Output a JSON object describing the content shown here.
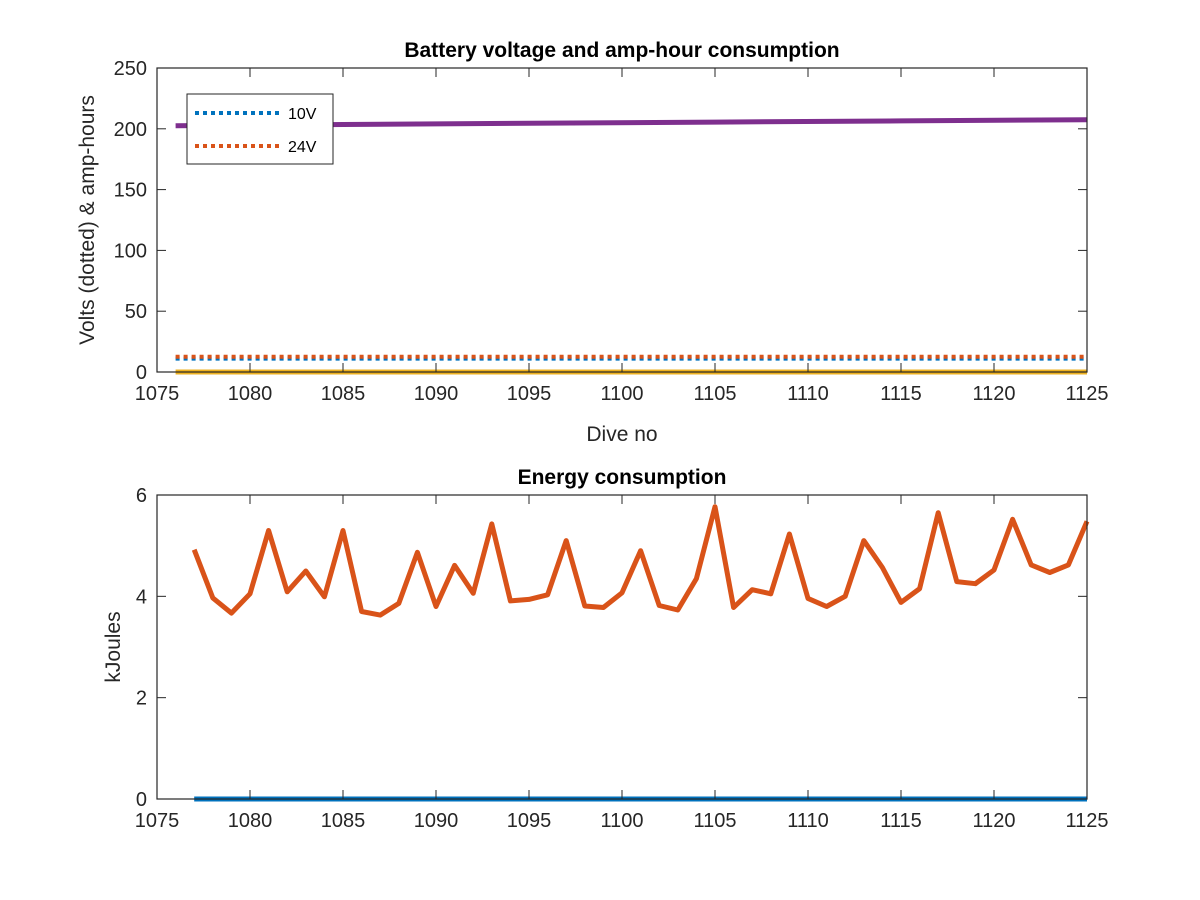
{
  "chart_data": [
    {
      "type": "line",
      "title": "Battery voltage and amp-hour consumption",
      "xlabel": "Dive no",
      "ylabel": "Volts (dotted) & amp-hours",
      "xlim": [
        1075,
        1125
      ],
      "ylim": [
        0,
        250
      ],
      "xticks": [
        "1075",
        "1080",
        "1085",
        "1090",
        "1095",
        "1100",
        "1105",
        "1110",
        "1115",
        "1120",
        "1125"
      ],
      "yticks": [
        "0",
        "50",
        "100",
        "150",
        "200",
        "250"
      ],
      "grid": false,
      "legend": {
        "position": "top-left",
        "entries": [
          "10V",
          "24V"
        ]
      },
      "series": [
        {
          "name": "10V",
          "style": "dotted",
          "color": "#0072BD",
          "x": [
            1076,
            1125
          ],
          "y": [
            11,
            11
          ]
        },
        {
          "name": "24V",
          "style": "dotted",
          "color": "#D95319",
          "x": [
            1076,
            1125
          ],
          "y": [
            12.5,
            12.5
          ]
        },
        {
          "style": "solid",
          "color": "#EDB120",
          "x": [
            1076,
            1125
          ],
          "y": [
            0,
            0
          ]
        },
        {
          "style": "solid",
          "color": "#7E2F8E",
          "x": [
            1076,
            1085,
            1095,
            1105,
            1115,
            1125
          ],
          "y": [
            202.5,
            203.5,
            204.5,
            205.5,
            206.5,
            207.5
          ]
        }
      ]
    },
    {
      "type": "line",
      "title": "Energy consumption",
      "xlabel": "",
      "ylabel": "kJoules",
      "xlim": [
        1075,
        1125
      ],
      "ylim": [
        0,
        6
      ],
      "xticks": [
        "1075",
        "1080",
        "1085",
        "1090",
        "1095",
        "1100",
        "1105",
        "1110",
        "1115",
        "1120",
        "1125"
      ],
      "yticks": [
        "0",
        "2",
        "4",
        "6"
      ],
      "grid": false,
      "series": [
        {
          "style": "solid",
          "color": "#D95319",
          "x": [
            1077,
            1078,
            1079,
            1080,
            1081,
            1082,
            1083,
            1084,
            1085,
            1086,
            1087,
            1088,
            1089,
            1090,
            1091,
            1092,
            1093,
            1094,
            1095,
            1096,
            1097,
            1098,
            1099,
            1100,
            1101,
            1102,
            1103,
            1104,
            1105,
            1106,
            1107,
            1108,
            1109,
            1110,
            1111,
            1112,
            1113,
            1114,
            1115,
            1116,
            1117,
            1118,
            1119,
            1120,
            1121,
            1122,
            1123,
            1124,
            1125
          ],
          "y": [
            4.92,
            3.97,
            3.67,
            4.05,
            5.3,
            4.09,
            4.5,
            3.99,
            5.3,
            3.7,
            3.63,
            3.86,
            4.87,
            3.8,
            4.61,
            4.06,
            5.43,
            3.91,
            3.94,
            4.03,
            5.1,
            3.81,
            3.78,
            4.07,
            4.9,
            3.82,
            3.73,
            4.35,
            5.77,
            3.78,
            4.13,
            4.05,
            5.23,
            3.96,
            3.8,
            4.0,
            5.1,
            4.57,
            3.88,
            4.15,
            5.65,
            4.29,
            4.25,
            4.52,
            5.52,
            4.62,
            4.47,
            4.62,
            5.48
          ]
        },
        {
          "style": "solid",
          "color": "#0072BD",
          "x": [
            1077,
            1125
          ],
          "y": [
            0,
            0
          ]
        }
      ]
    }
  ]
}
